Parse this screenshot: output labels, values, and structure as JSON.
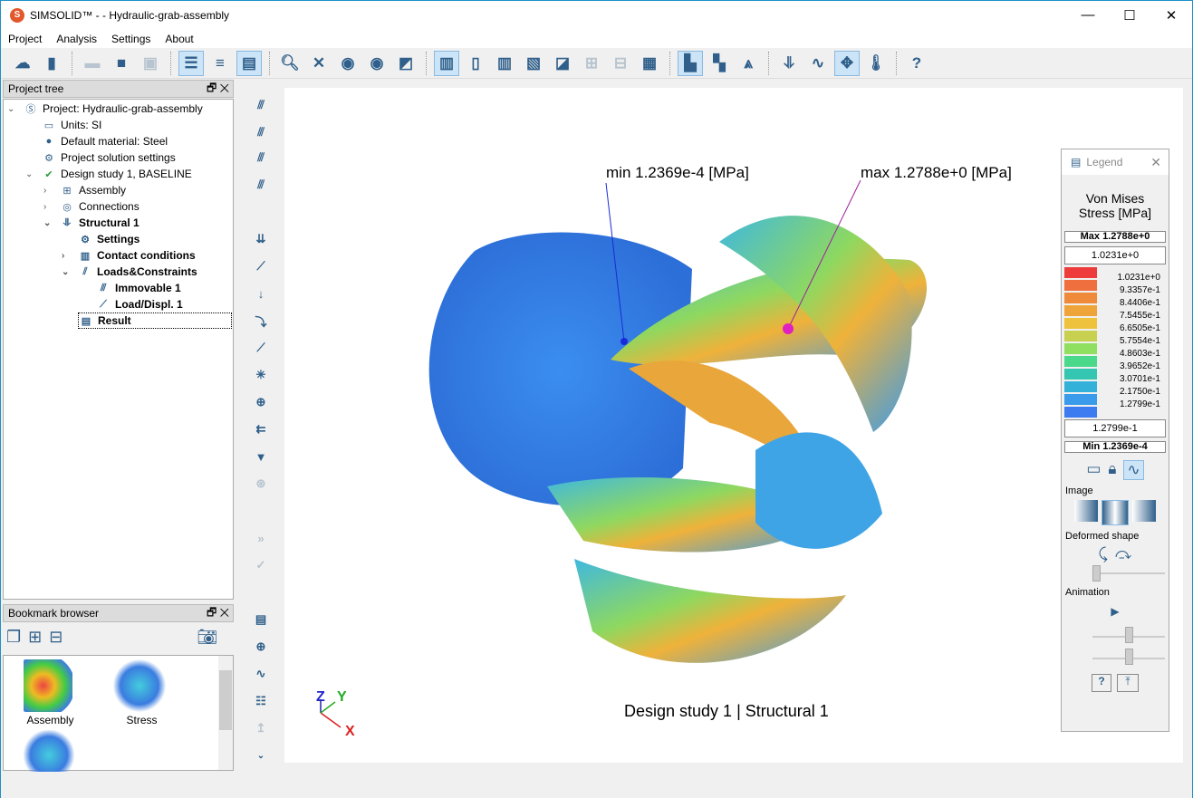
{
  "window": {
    "title": "SIMSOLID™ -  -  Hydraulic-grab-assembly",
    "app_icon": "S",
    "minimize": "—",
    "maximize": "☐",
    "close": "✕"
  },
  "menu": [
    "Project",
    "Analysis",
    "Settings",
    "About"
  ],
  "project_tree": {
    "title": "Project tree",
    "items": [
      {
        "label": "Project: Hydraulic-grab-assembly",
        "icon": "simsolid-icon"
      },
      {
        "label": "Units: SI",
        "icon": "ruler-icon"
      },
      {
        "label": "Default material: Steel",
        "icon": "material-icon"
      },
      {
        "label": "Project solution settings",
        "icon": "gear-icon"
      },
      {
        "label": "Design study 1, BASELINE",
        "icon": "design-study-icon"
      },
      {
        "label": "Assembly",
        "icon": "assembly-icon"
      },
      {
        "label": "Connections",
        "icon": "connections-icon"
      },
      {
        "label": "Structural  1",
        "icon": "structural-icon"
      },
      {
        "label": "Settings",
        "icon": "gear-icon"
      },
      {
        "label": "Contact conditions",
        "icon": "contact-icon"
      },
      {
        "label": "Loads&Constraints",
        "icon": "loads-icon"
      },
      {
        "label": "Immovable 1",
        "icon": "immovable-icon"
      },
      {
        "label": "Load/Displ. 1",
        "icon": "load-icon"
      },
      {
        "label": "Result",
        "icon": "result-icon"
      }
    ]
  },
  "bookmarks": {
    "title": "Bookmark browser",
    "items": [
      {
        "label": "Assembly"
      },
      {
        "label": "Stress"
      },
      {
        "label": ""
      }
    ]
  },
  "viewport": {
    "min_label": "min  1.2369e-4  [MPa]",
    "max_label": "max  1.2788e+0  [MPa]",
    "caption": "Design study 1 | Structural  1",
    "axes": {
      "z": "Z",
      "y": "Y",
      "x": "X"
    }
  },
  "legend": {
    "title": "Legend",
    "heading": "Von Mises Stress [MPa]",
    "max_label": "Max   1.2788e+0",
    "upper_value": "1.0231e+0",
    "values": [
      "1.0231e+0",
      "9.3357e-1",
      "8.4406e-1",
      "7.5455e-1",
      "6.6505e-1",
      "5.7554e-1",
      "4.8603e-1",
      "3.9652e-1",
      "3.0701e-1",
      "2.1750e-1",
      "1.2799e-1"
    ],
    "colors": [
      "#ee3b3b",
      "#ef6f3e",
      "#ef8a3a",
      "#efa43a",
      "#eec23c",
      "#c7d14f",
      "#8fe060",
      "#4ad88a",
      "#34c6b0",
      "#33b1d8",
      "#3a9bea",
      "#3d7cf0"
    ],
    "lower_value": "1.2799e-1",
    "min_label": "Min   1.2369e-4",
    "image_label": "Image",
    "deformed_label": "Deformed shape",
    "animation_label": "Animation",
    "help": "?"
  }
}
